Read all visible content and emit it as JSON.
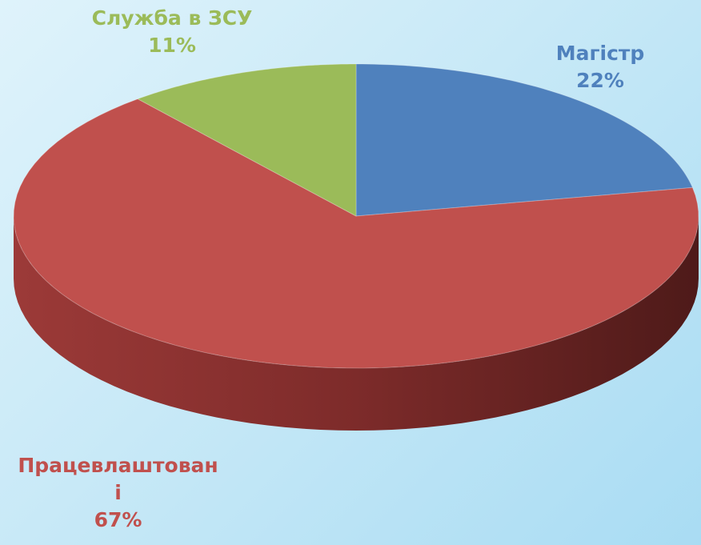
{
  "chart_data": {
    "type": "pie",
    "categories": [
      "Магістр",
      "Працевлаштовані",
      "Служба в ЗСУ"
    ],
    "values": [
      22,
      67,
      11
    ],
    "value_labels": [
      "22%",
      "67%",
      "11%"
    ],
    "colors": [
      "#4f81bd",
      "#c0504d",
      "#9bbb59"
    ]
  }
}
